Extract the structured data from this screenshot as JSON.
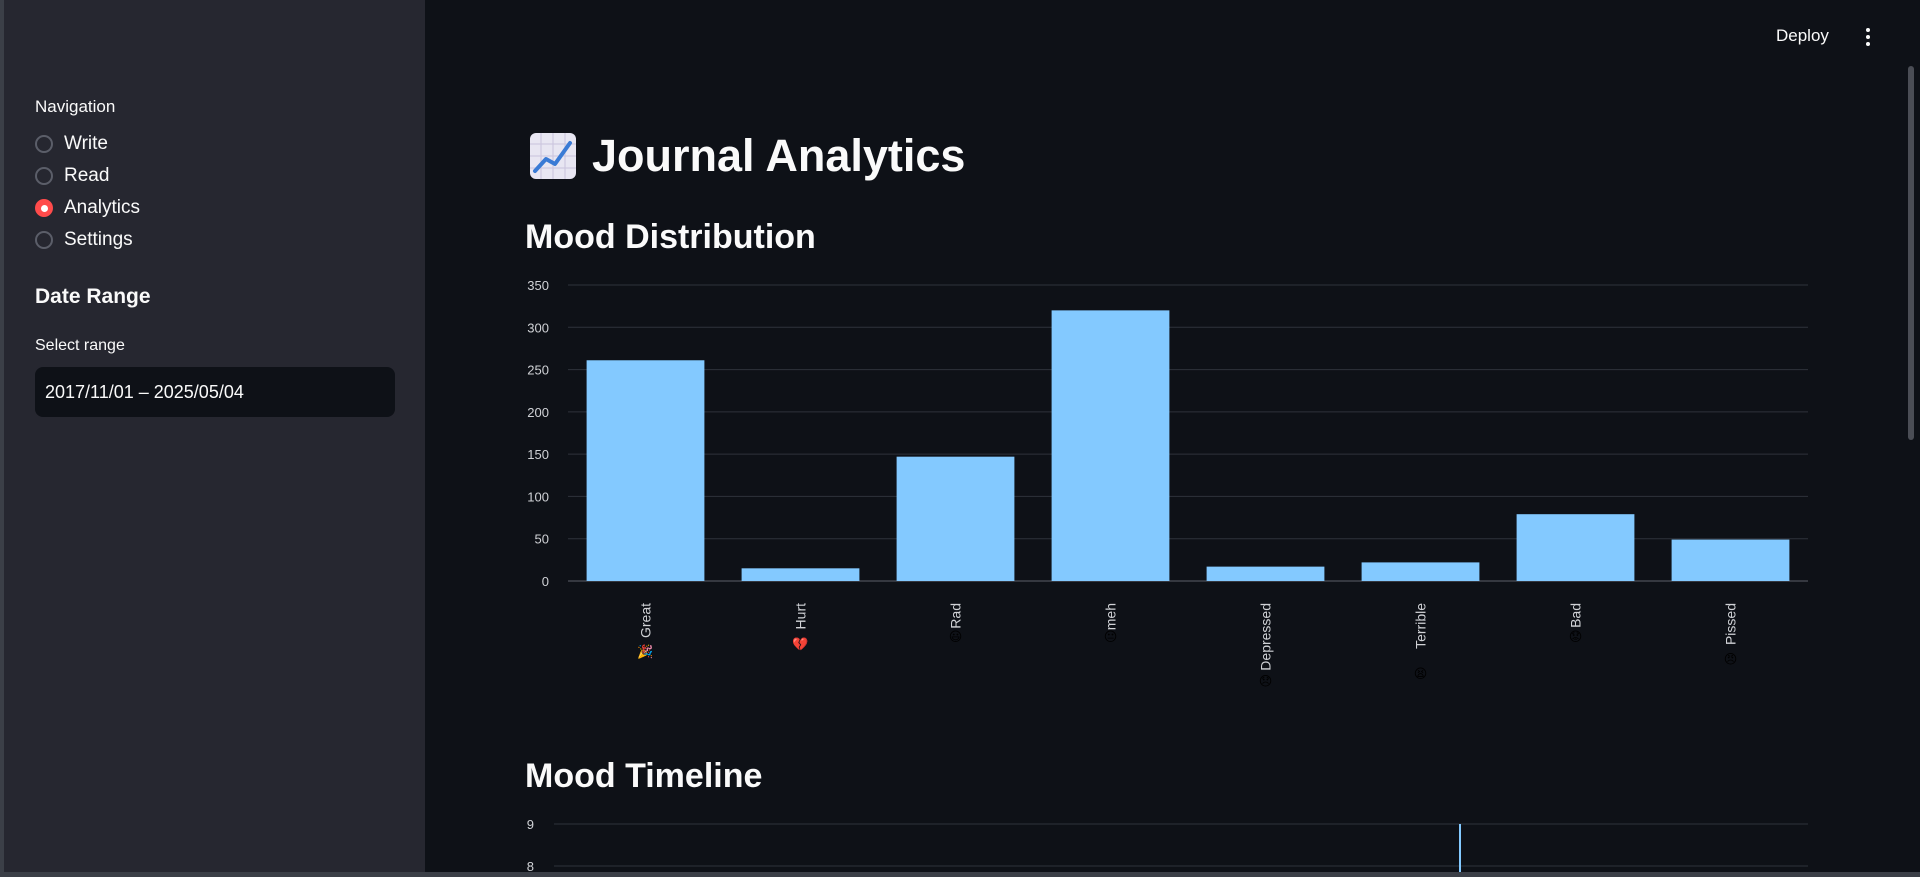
{
  "sidebar": {
    "nav_title": "Navigation",
    "nav_items": [
      {
        "label": "Write",
        "checked": false
      },
      {
        "label": "Read",
        "checked": false
      },
      {
        "label": "Analytics",
        "checked": true
      },
      {
        "label": "Settings",
        "checked": false
      }
    ],
    "date_heading": "Date Range",
    "date_label": "Select range",
    "date_value": "2017/11/01 – 2025/05/04"
  },
  "header": {
    "deploy_label": "Deploy",
    "menu_icon": "kebab-menu-icon"
  },
  "main": {
    "title": "Journal Analytics",
    "title_icon": "chart-increasing-icon",
    "mood_distribution_title": "Mood Distribution",
    "mood_timeline_title": "Mood Timeline"
  },
  "colors": {
    "accent": "#ff4b4b",
    "bar": "#83c9ff",
    "background": "#0e1117",
    "sidebar": "#262730"
  },
  "chart_data": [
    {
      "type": "bar",
      "categories": [
        "Great",
        "Hurt",
        "Rad",
        "meh",
        "Depressed",
        "Terrible",
        "Bad",
        "Pissed"
      ],
      "category_emojis": [
        "🎉",
        "💔",
        "😃",
        "😐",
        "😞",
        "😫",
        "😟",
        "😠"
      ],
      "values": [
        261,
        15,
        147,
        320,
        17,
        22,
        79,
        49
      ],
      "yticks": [
        0,
        50,
        100,
        150,
        200,
        250,
        300,
        350
      ],
      "ylim": [
        0,
        350
      ],
      "grid": true
    },
    {
      "type": "line",
      "yticks": [
        8,
        9
      ],
      "grid": true
    }
  ]
}
